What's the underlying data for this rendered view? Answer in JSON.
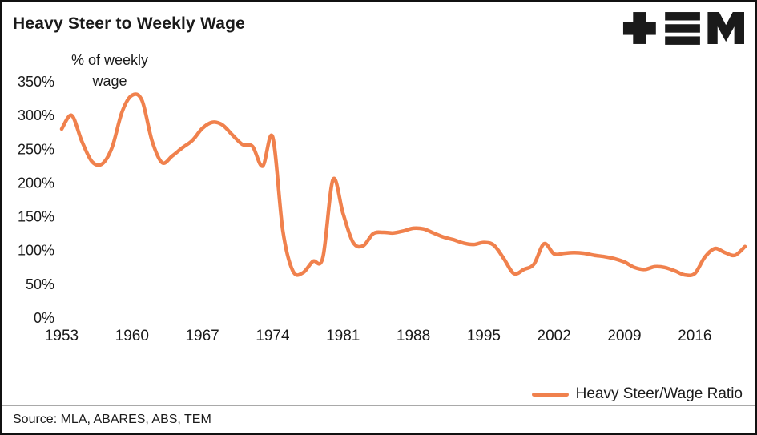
{
  "header": {
    "title": "Heavy Steer to Weekly Wage"
  },
  "icons": {
    "logo": "tem-logo",
    "logo_color": "#1a1a1a"
  },
  "chart_data": {
    "type": "line",
    "title": "Heavy Steer to Weekly Wage",
    "ylabel": "% of weekly wage",
    "xlabel": "",
    "xlim": [
      1953,
      2021
    ],
    "ylim": [
      0,
      350
    ],
    "x_ticks": [
      1953,
      1960,
      1967,
      1974,
      1981,
      1988,
      1995,
      2002,
      2009,
      2016
    ],
    "y_ticks": [
      0,
      50,
      100,
      150,
      200,
      250,
      300,
      350
    ],
    "y_tick_suffix": "%",
    "grid": false,
    "legend_position": "bottom-right",
    "line_color": "#F0814D",
    "series": [
      {
        "name": "Heavy Steer/Wage Ratio",
        "x": [
          1953,
          1954,
          1955,
          1956,
          1957,
          1958,
          1959,
          1960,
          1961,
          1962,
          1963,
          1964,
          1965,
          1966,
          1967,
          1968,
          1969,
          1970,
          1971,
          1972,
          1973,
          1974,
          1975,
          1976,
          1977,
          1978,
          1979,
          1980,
          1981,
          1982,
          1983,
          1984,
          1985,
          1986,
          1987,
          1988,
          1989,
          1990,
          1991,
          1992,
          1993,
          1994,
          1995,
          1996,
          1997,
          1998,
          1999,
          2000,
          2001,
          2002,
          2003,
          2004,
          2005,
          2006,
          2007,
          2008,
          2009,
          2010,
          2011,
          2012,
          2013,
          2014,
          2015,
          2016,
          2017,
          2018,
          2019,
          2020,
          2021
        ],
        "values": [
          280,
          300,
          262,
          232,
          228,
          252,
          305,
          330,
          322,
          262,
          230,
          240,
          252,
          263,
          281,
          290,
          286,
          271,
          257,
          254,
          225,
          268,
          130,
          70,
          67,
          84,
          90,
          205,
          155,
          112,
          107,
          125,
          127,
          126,
          129,
          133,
          132,
          126,
          120,
          116,
          111,
          109,
          112,
          108,
          88,
          66,
          72,
          80,
          110,
          95,
          96,
          97,
          96,
          93,
          91,
          88,
          83,
          75,
          72,
          76,
          75,
          70,
          64,
          66,
          90,
          103,
          97,
          93,
          106
        ]
      }
    ]
  },
  "legend": {
    "label": "Heavy Steer/Wage Ratio"
  },
  "footer": {
    "source": "Source: MLA, ABARES, ABS, TEM"
  }
}
